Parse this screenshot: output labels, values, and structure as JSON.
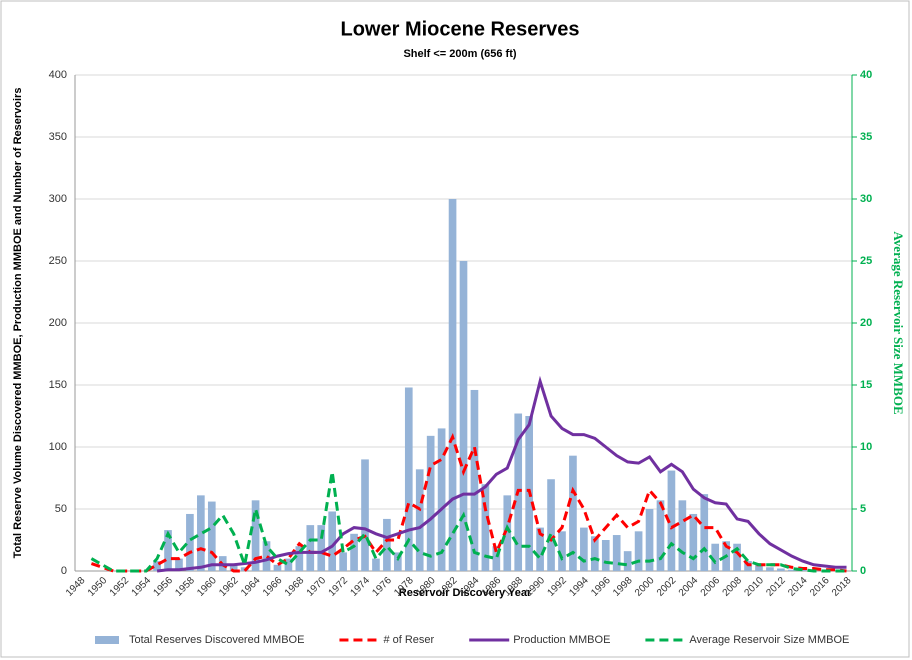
{
  "chart_data": {
    "type": "bar",
    "title": "Lower Miocene Reserves",
    "subtitle": "Shelf <= 200m (656 ft)",
    "x_label": "Reservoir Discovery Year",
    "y_label": "Total Reserve Volume Discovered MMBOE, Production MMBOE and Number of Reservoirs",
    "y2_label": "Average Reservoir Size MMBOE",
    "categories": [
      "1948",
      null,
      "1950",
      null,
      "1952",
      null,
      "1954",
      null,
      "1956",
      null,
      "1958",
      null,
      "1960",
      null,
      "1962",
      null,
      "1964",
      null,
      "1966",
      null,
      "1968",
      null,
      "1970",
      null,
      "1972",
      null,
      "1974",
      null,
      "1976",
      null,
      "1978",
      null,
      "1980",
      null,
      "1982",
      null,
      "1984",
      null,
      "1986",
      null,
      "1988",
      null,
      "1990",
      null,
      "1992",
      null,
      "1994",
      null,
      "1996",
      null,
      "1998",
      null,
      "2000",
      null,
      "2002",
      null,
      "2004",
      null,
      "2006",
      null,
      "2008",
      null,
      "2010",
      null,
      "2012",
      null,
      "2014",
      null,
      "2016",
      null,
      "2018"
    ],
    "series": [
      {
        "name": "Total Reserves Discovered MMBOE",
        "type": "bar",
        "color": "#95b3d7",
        "values": [
          0,
          0,
          0,
          0,
          0,
          0,
          0,
          8,
          33,
          10,
          46,
          61,
          56,
          12,
          5,
          3,
          57,
          24,
          5,
          10,
          20,
          37,
          37,
          48,
          15,
          30,
          90,
          10,
          42,
          15,
          148,
          82,
          109,
          115,
          300,
          250,
          146,
          70,
          20,
          61,
          127,
          125,
          35,
          74,
          32,
          93,
          35,
          28,
          25,
          29,
          16,
          32,
          50,
          57,
          81,
          57,
          46,
          62,
          22,
          24,
          22,
          8,
          5,
          3,
          2,
          1,
          1,
          0,
          0,
          0,
          0
        ]
      },
      {
        "name": "# of Reser",
        "type": "line",
        "dash": true,
        "color": "#ff0000",
        "values": [
          null,
          6,
          3,
          0,
          0,
          0,
          0,
          5,
          10,
          10,
          15,
          18,
          15,
          5,
          0,
          0,
          10,
          12,
          5,
          10,
          22,
          15,
          15,
          12,
          18,
          25,
          28,
          15,
          25,
          25,
          55,
          50,
          85,
          90,
          108,
          80,
          100,
          50,
          15,
          35,
          65,
          65,
          30,
          25,
          35,
          65,
          50,
          25,
          35,
          45,
          35,
          40,
          65,
          55,
          35,
          40,
          45,
          35,
          35,
          20,
          15,
          5,
          5,
          5,
          5,
          3,
          2,
          2,
          1,
          1,
          0
        ]
      },
      {
        "name": "Production MMBOE",
        "type": "line",
        "dash": false,
        "color": "#7030a0",
        "values": [
          null,
          null,
          null,
          null,
          null,
          null,
          null,
          0,
          1,
          1,
          2,
          3,
          5,
          5,
          5,
          6,
          7,
          9,
          12,
          14,
          15,
          15,
          15,
          20,
          30,
          35,
          34,
          30,
          27,
          30,
          33,
          35,
          42,
          50,
          58,
          62,
          62,
          68,
          78,
          83,
          106,
          118,
          153,
          125,
          115,
          110,
          110,
          107,
          100,
          93,
          88,
          87,
          92,
          80,
          86,
          80,
          66,
          59,
          55,
          54,
          42,
          40,
          30,
          22,
          17,
          12,
          8,
          5,
          4,
          3,
          3
        ]
      },
      {
        "name": "Average Reservoir Size MMBOE",
        "type": "line",
        "dash": true,
        "color": "#00b050",
        "axis": "y2",
        "values": [
          null,
          1.0,
          0.5,
          0,
          0,
          0,
          0,
          1,
          3,
          1.5,
          2.5,
          3,
          3.5,
          4.5,
          3,
          0.5,
          5,
          2,
          1,
          0.5,
          1.5,
          2.5,
          2.5,
          8,
          1.5,
          2,
          3,
          1,
          2,
          1,
          2.5,
          1.5,
          1.2,
          1.5,
          3,
          4.5,
          1.5,
          1.2,
          1,
          3.5,
          2,
          2,
          1,
          3,
          1,
          1.5,
          0.8,
          1,
          0.7,
          0.6,
          0.5,
          0.8,
          0.8,
          1,
          2.2,
          1.5,
          1,
          1.8,
          0.7,
          1.2,
          1.8,
          0.8,
          0.5,
          0.5,
          0.5,
          0.2,
          0.1,
          0,
          0,
          0,
          0
        ]
      }
    ],
    "ylim": [
      0,
      400
    ],
    "yticks": [
      0,
      50,
      100,
      150,
      200,
      250,
      300,
      350,
      400
    ],
    "y2lim": [
      0,
      40
    ],
    "y2ticks": [
      0,
      5,
      10,
      15,
      20,
      25,
      30,
      35,
      40
    ],
    "y2color": "#00b050",
    "grid": true,
    "legend": "bottom"
  }
}
